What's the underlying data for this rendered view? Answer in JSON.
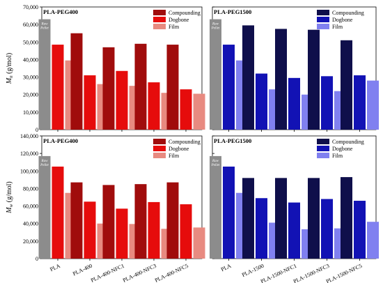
{
  "chart_data": [
    {
      "type": "bar",
      "title": "PLA-PEG400",
      "ylabel_symbol": "M",
      "ylabel_sub": "n",
      "ylabel_unit": " (g/mol)",
      "categories": [
        "PLA",
        "PLA-400",
        "PLA-400-NFC1",
        "PLA-400-NFC3",
        "PLA-400-NFC5"
      ],
      "ylim": [
        0,
        70000
      ],
      "yticks": [
        "0",
        "10,000",
        "20,000",
        "30,000",
        "40,000",
        "50,000",
        "60,000",
        "70,000"
      ],
      "raw_pellet_label": [
        "Raw",
        "Pellet"
      ],
      "raw_pellet_value": 63000,
      "series": [
        {
          "name": "Compounding",
          "values": [
            null,
            55000,
            47000,
            49000,
            48500
          ]
        },
        {
          "name": "Dogbone",
          "values": [
            48500,
            31000,
            33500,
            27000,
            23000
          ]
        },
        {
          "name": "Film",
          "values": [
            39500,
            26000,
            25000,
            21000,
            20500
          ]
        }
      ],
      "legend": "top-right"
    },
    {
      "type": "bar",
      "title": "PLA-PEG1500",
      "categories": [
        "PLA",
        "PLA-1500",
        "PLA-1500-NFC1",
        "PLA-1500-NFC3",
        "PLA-1500-NFC5"
      ],
      "ylim": [
        0,
        70000
      ],
      "raw_pellet_label": [
        "Raw",
        "Pellet"
      ],
      "raw_pellet_value": 63000,
      "series": [
        {
          "name": "Compounding",
          "values": [
            null,
            59500,
            57500,
            57000,
            51000
          ]
        },
        {
          "name": "Dogbone",
          "values": [
            48500,
            32000,
            29500,
            30500,
            31000
          ]
        },
        {
          "name": "Film",
          "values": [
            39500,
            23000,
            20000,
            22000,
            28000
          ]
        }
      ],
      "legend": "top-right"
    },
    {
      "type": "bar",
      "title": "PLA-PEG400",
      "ylabel_symbol": "M",
      "ylabel_sub": "w",
      "ylabel_unit": " (g/mol)",
      "categories": [
        "PLA",
        "PLA-400",
        "PLA-400-NFC1",
        "PLA-400-NFC3",
        "PLA-400-NFC5"
      ],
      "ylim": [
        0,
        140000
      ],
      "yticks": [
        "0",
        "20,000",
        "40,000",
        "60,000",
        "80,000",
        "100,000",
        "120,000",
        "140,000"
      ],
      "raw_pellet_label": [
        "Raw",
        "Pellet"
      ],
      "raw_pellet_value": 117000,
      "series": [
        {
          "name": "Compounding",
          "values": [
            null,
            87000,
            84000,
            85000,
            87000
          ]
        },
        {
          "name": "Dogbone",
          "values": [
            105000,
            65000,
            57000,
            64500,
            62000
          ]
        },
        {
          "name": "Film",
          "values": [
            75000,
            40000,
            39500,
            34000,
            35500
          ]
        }
      ],
      "legend": "top-right"
    },
    {
      "type": "bar",
      "title": "PLA-PEG1500",
      "categories": [
        "PLA",
        "PLA-1500",
        "PLA-1500-NFC1",
        "PLA-1500-NFC3",
        "PLA-1500-NFC5"
      ],
      "ylim": [
        0,
        140000
      ],
      "raw_pellet_label": [
        "Raw",
        "Pellet"
      ],
      "raw_pellet_value": 117000,
      "series": [
        {
          "name": "Compounding",
          "values": [
            null,
            92000,
            92000,
            92000,
            93000
          ]
        },
        {
          "name": "Dogbone",
          "values": [
            105000,
            69000,
            64000,
            68000,
            66000
          ]
        },
        {
          "name": "Film",
          "values": [
            75000,
            41000,
            33500,
            34500,
            42000
          ]
        }
      ],
      "legend": "top-right"
    }
  ],
  "colors": {
    "raw_pellet": "#8c8c8c",
    "peg400": [
      "#a00c0c",
      "#e60c0c",
      "#e88a80"
    ],
    "peg1500": [
      "#0f0f4b",
      "#1212b4",
      "#8080f0"
    ]
  }
}
